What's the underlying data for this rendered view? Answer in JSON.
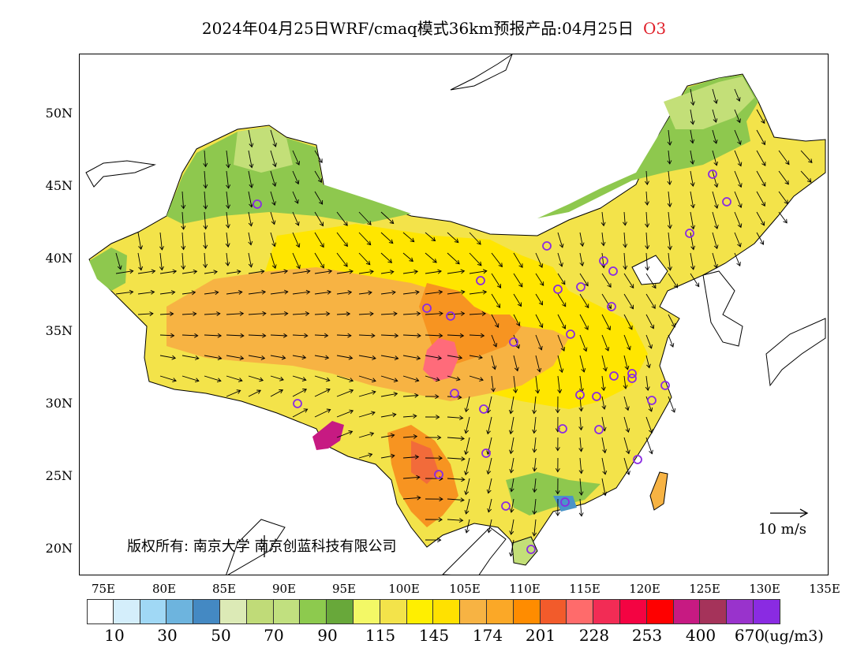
{
  "title": {
    "text": "2024年04月25日WRF/cmaq模式36km预报产品:04月25日",
    "species": "O3",
    "species_color": "#e0202a"
  },
  "map": {
    "lat_labels": [
      "50N",
      "45N",
      "40N",
      "35N",
      "30N",
      "25N",
      "20N"
    ],
    "lon_labels": [
      "75E",
      "80E",
      "85E",
      "90E",
      "95E",
      "100E",
      "105E",
      "110E",
      "115E",
      "120E",
      "125E",
      "130E",
      "135E"
    ],
    "copyright": "版权所有: 南京大学 南京创蓝科技有限公司",
    "wind_reference": "10 m/s",
    "marker_color": "#8a2be2",
    "field_colors": {
      "low_north": "#8ec84e",
      "mid_north": "#c3df78",
      "yellow": "#f3e34a",
      "yellow_bright": "#ffe600",
      "orange_light": "#f7b343",
      "orange": "#f79421",
      "red_orange": "#f26b3a",
      "pink": "#ff6b7a",
      "magenta": "#c71a82",
      "blue": "#4a94c8"
    }
  },
  "colorbar": {
    "colors": [
      "#ffffff",
      "#d4eefb",
      "#a0d8f5",
      "#6db4de",
      "#4489c3",
      "#dceab6",
      "#c0db78",
      "#c1e07f",
      "#8dca4e",
      "#68a83a",
      "#f3f866",
      "#f3e34a",
      "#ffef00",
      "#ffe100",
      "#f7b343",
      "#fba827",
      "#ff8c00",
      "#f25b2b",
      "#ff6b6b",
      "#f22c55",
      "#f40342",
      "#fe0000",
      "#c71a82",
      "#a5335a",
      "#9933cc",
      "#8a2be2"
    ],
    "tick_labels": [
      "10",
      "30",
      "50",
      "70",
      "90",
      "115",
      "145",
      "174",
      "201",
      "228",
      "253",
      "400",
      "670"
    ],
    "unit": "(ug/m3)"
  }
}
